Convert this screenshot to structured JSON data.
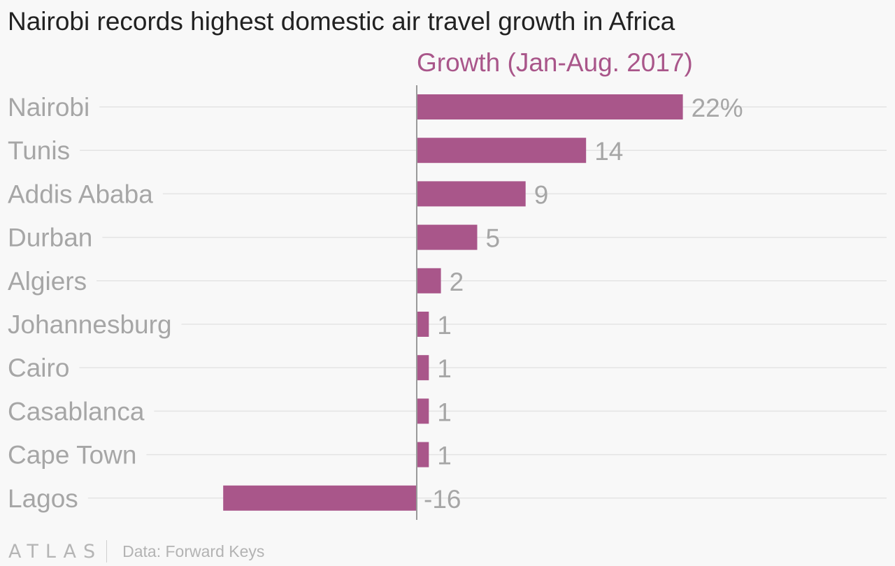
{
  "chart_data": {
    "type": "bar",
    "orientation": "horizontal",
    "title": "Nairobi records highest domestic air travel growth in Africa",
    "series": [
      {
        "name": "Growth (Jan-Aug. 2017)",
        "values": [
          22,
          14,
          9,
          5,
          2,
          1,
          1,
          1,
          1,
          -16
        ],
        "value_labels": [
          "22%",
          "14",
          "9",
          "5",
          "2",
          "1",
          "1",
          "1",
          "1",
          "-16"
        ]
      }
    ],
    "categories": [
      "Nairobi",
      "Tunis",
      "Addis Ababa",
      "Durban",
      "Algiers",
      "Johannesburg",
      "Cairo",
      "Casablanca",
      "Cape Town",
      "Lagos"
    ],
    "xlim": [
      -16,
      22
    ],
    "grid": true,
    "bar_color": "#a9568a",
    "series_label_color": "#a9568a"
  },
  "footer": {
    "logo": "ATLAS",
    "source": "Data: Forward Keys"
  }
}
